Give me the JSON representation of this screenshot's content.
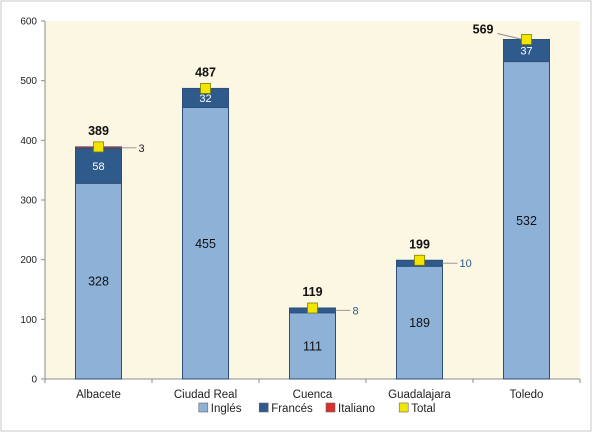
{
  "chart_data": {
    "type": "bar",
    "stacked": true,
    "categories": [
      "Albacete",
      "Ciudad Real",
      "Cuenca",
      "Guadalajara",
      "Toledo"
    ],
    "series": [
      {
        "name": "Inglés",
        "values": [
          328,
          455,
          111,
          189,
          532
        ],
        "color": "#8eb1d8"
      },
      {
        "name": "Francés",
        "values": [
          58,
          32,
          8,
          10,
          37
        ],
        "color": "#2f5a8c"
      },
      {
        "name": "Italiano",
        "values": [
          3,
          0,
          0,
          0,
          0
        ],
        "color": "#d9302c"
      }
    ],
    "totals": {
      "name": "Total",
      "values": [
        389,
        487,
        119,
        199,
        569
      ],
      "color": "#f2e600"
    },
    "ylim": [
      0,
      600
    ],
    "yticks": [
      0,
      100,
      200,
      300,
      400,
      500,
      600
    ],
    "grid": false,
    "legend_position": "bottom",
    "plot_background": "#fbf7e2"
  }
}
